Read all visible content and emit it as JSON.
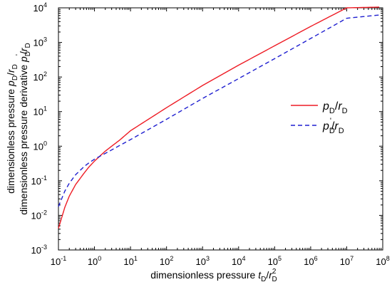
{
  "chart_data": {
    "type": "line",
    "x_scale": "log",
    "y_scale": "log",
    "xlim": [
      0.1,
      100000000
    ],
    "ylim": [
      0.001,
      10000
    ],
    "grid": false,
    "legend_position": "right",
    "xlabel": {
      "text": "dimensionless pressure ",
      "var": "t",
      "sub": "D",
      "mid": "/",
      "var2": "r",
      "sup2": "2",
      "sub2": "D"
    },
    "ylabel_line1": {
      "text": "dimensionless pressure ",
      "var": "p",
      "sub": "D",
      "mid": "/",
      "var2": "r",
      "sub2": "D"
    },
    "ylabel_line2": {
      "text": "dimensionless pressure derivative ",
      "var": "p",
      "sub": "D",
      "prime": "'",
      "mid": "/",
      "var2": "r",
      "sub2": "D"
    },
    "x_ticks": [
      {
        "value": 0.1,
        "base": "10",
        "exp": "-1"
      },
      {
        "value": 1,
        "base": "10",
        "exp": "0"
      },
      {
        "value": 10,
        "base": "10",
        "exp": "1"
      },
      {
        "value": 100,
        "base": "10",
        "exp": "2"
      },
      {
        "value": 1000,
        "base": "10",
        "exp": "3"
      },
      {
        "value": 10000,
        "base": "10",
        "exp": "4"
      },
      {
        "value": 100000,
        "base": "10",
        "exp": "5"
      },
      {
        "value": 1000000,
        "base": "10",
        "exp": "6"
      },
      {
        "value": 10000000,
        "base": "10",
        "exp": "7"
      },
      {
        "value": 100000000,
        "base": "10",
        "exp": "8"
      }
    ],
    "y_ticks": [
      {
        "value": 0.001,
        "base": "10",
        "exp": "-3"
      },
      {
        "value": 0.01,
        "base": "10",
        "exp": "-2"
      },
      {
        "value": 0.1,
        "base": "10",
        "exp": "-1"
      },
      {
        "value": 1,
        "base": "10",
        "exp": "0"
      },
      {
        "value": 10,
        "base": "10",
        "exp": "1"
      },
      {
        "value": 100,
        "base": "10",
        "exp": "2"
      },
      {
        "value": 1000,
        "base": "10",
        "exp": "3"
      },
      {
        "value": 10000,
        "base": "10",
        "exp": "4"
      }
    ],
    "series": [
      {
        "label": {
          "var": "p",
          "sub": "D",
          "mid": "/",
          "var2": "r",
          "sub2": "D"
        },
        "color": "#ee1c25",
        "dash": "solid",
        "x": [
          0.1,
          0.15,
          0.2,
          0.3,
          0.5,
          0.7,
          1,
          1.5,
          2,
          3,
          5,
          10,
          100,
          1000,
          10000,
          100000,
          1000000,
          10000000,
          80000000
        ],
        "y": [
          0.0042,
          0.017,
          0.036,
          0.078,
          0.16,
          0.25,
          0.37,
          0.55,
          0.72,
          1.0,
          1.5,
          2.8,
          13,
          57,
          220,
          800,
          2900,
          10000,
          10500
        ]
      },
      {
        "label": {
          "var": "p",
          "sub": "D",
          "prime": "'",
          "mid": "/",
          "var2": "r",
          "sub2": "D"
        },
        "color": "#1f1fd0",
        "dash": "dashed",
        "x": [
          0.1,
          0.15,
          0.2,
          0.3,
          0.5,
          0.7,
          1,
          1.5,
          2,
          3,
          5,
          10,
          100,
          1000,
          10000,
          100000,
          1000000,
          10000000,
          80000000
        ],
        "y": [
          0.018,
          0.05,
          0.085,
          0.15,
          0.25,
          0.33,
          0.42,
          0.53,
          0.62,
          0.78,
          1.05,
          1.55,
          6.0,
          24,
          90,
          340,
          1300,
          5000,
          6200
        ]
      }
    ]
  }
}
